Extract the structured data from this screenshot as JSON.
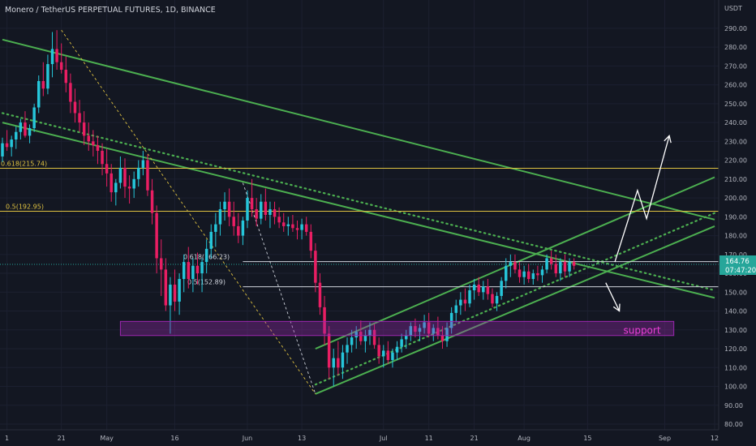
{
  "header": {
    "symbol_line": "Monero / TetherUS PERPETUAL FUTURES, 1D, BINANCE"
  },
  "colors": {
    "background": "#131722",
    "up": "#26c6da",
    "down": "#e91e63",
    "trendline": "#4caf50",
    "fib_level": "#e0c341",
    "white_level": "#cfd3dc",
    "support_zone": "#9c27b0",
    "support_text": "#ea3fd6",
    "arrow": "#ffffff",
    "price_label_bg": "#26a69a"
  },
  "chart_data": {
    "type": "candlestick",
    "title": "Monero / TetherUS PERPETUAL FUTURES, 1D, BINANCE",
    "ylabel": "USDT",
    "ylim": [
      77,
      305
    ],
    "y_ticks": [
      290,
      280,
      270,
      260,
      250,
      240,
      230,
      220,
      210,
      200,
      190,
      180,
      170,
      160,
      150,
      140,
      130,
      120,
      110,
      100,
      90,
      80
    ],
    "x_range": [
      "2022-04-08",
      "2022-09-12"
    ],
    "x_ticks": [
      {
        "label": "1",
        "date": "2022-04-09"
      },
      {
        "label": "21",
        "date": "2022-04-21"
      },
      {
        "label": "May",
        "date": "2022-05-01"
      },
      {
        "label": "16",
        "date": "2022-05-16"
      },
      {
        "label": "Jun",
        "date": "2022-06-01"
      },
      {
        "label": "13",
        "date": "2022-06-13"
      },
      {
        "label": "Jul",
        "date": "2022-07-01"
      },
      {
        "label": "11",
        "date": "2022-07-11"
      },
      {
        "label": "21",
        "date": "2022-07-21"
      },
      {
        "label": "Aug",
        "date": "2022-08-01"
      },
      {
        "label": "15",
        "date": "2022-08-15"
      },
      {
        "label": "Sep",
        "date": "2022-09-01"
      },
      {
        "label": "12",
        "date": "2022-09-12"
      }
    ],
    "candles_start": "2022-04-08",
    "candles": [
      [
        222,
        232,
        219,
        229
      ],
      [
        229,
        236,
        225,
        227
      ],
      [
        227,
        233,
        222,
        231
      ],
      [
        231,
        238,
        226,
        235
      ],
      [
        235,
        242,
        231,
        240
      ],
      [
        240,
        246,
        232,
        233
      ],
      [
        233,
        239,
        229,
        237
      ],
      [
        237,
        250,
        235,
        248
      ],
      [
        248,
        265,
        245,
        262
      ],
      [
        262,
        272,
        254,
        258
      ],
      [
        258,
        276,
        255,
        271
      ],
      [
        271,
        288,
        264,
        279
      ],
      [
        279,
        289,
        268,
        272
      ],
      [
        272,
        282,
        266,
        268
      ],
      [
        268,
        275,
        256,
        261
      ],
      [
        261,
        266,
        245,
        251
      ],
      [
        251,
        258,
        240,
        245
      ],
      [
        245,
        252,
        235,
        240
      ],
      [
        240,
        246,
        228,
        233
      ],
      [
        233,
        240,
        225,
        230
      ],
      [
        230,
        236,
        222,
        228
      ],
      [
        228,
        233,
        218,
        225
      ],
      [
        225,
        229,
        212,
        218
      ],
      [
        218,
        226,
        206,
        213
      ],
      [
        213,
        218,
        198,
        203
      ],
      [
        203,
        210,
        196,
        208
      ],
      [
        208,
        222,
        205,
        216
      ],
      [
        216,
        221,
        200,
        206
      ],
      [
        206,
        212,
        197,
        205
      ],
      [
        205,
        214,
        200,
        210
      ],
      [
        210,
        220,
        206,
        216
      ],
      [
        216,
        225,
        212,
        220
      ],
      [
        220,
        223,
        201,
        204
      ],
      [
        204,
        210,
        186,
        192
      ],
      [
        192,
        196,
        160,
        168
      ],
      [
        168,
        178,
        148,
        162
      ],
      [
        162,
        168,
        140,
        143
      ],
      [
        143,
        158,
        128,
        154
      ],
      [
        154,
        162,
        140,
        145
      ],
      [
        145,
        160,
        138,
        157
      ],
      [
        157,
        170,
        150,
        166
      ],
      [
        166,
        174,
        152,
        157
      ],
      [
        157,
        168,
        150,
        164
      ],
      [
        164,
        171,
        154,
        160
      ],
      [
        160,
        168,
        150,
        166
      ],
      [
        166,
        178,
        160,
        173
      ],
      [
        173,
        186,
        168,
        182
      ],
      [
        182,
        192,
        174,
        186
      ],
      [
        186,
        198,
        180,
        194
      ],
      [
        194,
        203,
        188,
        198
      ],
      [
        198,
        205,
        185,
        190
      ],
      [
        190,
        198,
        180,
        185
      ],
      [
        185,
        192,
        176,
        180
      ],
      [
        180,
        190,
        175,
        188
      ],
      [
        188,
        204,
        184,
        200
      ],
      [
        200,
        210,
        190,
        194
      ],
      [
        194,
        200,
        185,
        189
      ],
      [
        189,
        202,
        186,
        198
      ],
      [
        198,
        205,
        188,
        191
      ],
      [
        191,
        198,
        184,
        194
      ],
      [
        194,
        198,
        186,
        190
      ],
      [
        190,
        195,
        184,
        187
      ],
      [
        187,
        192,
        182,
        185
      ],
      [
        185,
        190,
        180,
        186
      ],
      [
        186,
        191,
        182,
        184
      ],
      [
        184,
        188,
        178,
        183
      ],
      [
        183,
        189,
        178,
        186
      ],
      [
        186,
        190,
        180,
        182
      ],
      [
        182,
        186,
        168,
        172
      ],
      [
        172,
        176,
        150,
        155
      ],
      [
        155,
        160,
        138,
        142
      ],
      [
        142,
        148,
        122,
        128
      ],
      [
        128,
        132,
        104,
        110
      ],
      [
        110,
        120,
        100,
        115
      ],
      [
        115,
        124,
        106,
        110
      ],
      [
        110,
        122,
        104,
        118
      ],
      [
        118,
        126,
        112,
        122
      ],
      [
        122,
        130,
        118,
        126
      ],
      [
        126,
        132,
        120,
        129
      ],
      [
        129,
        135,
        122,
        124
      ],
      [
        124,
        130,
        118,
        127
      ],
      [
        127,
        134,
        122,
        130
      ],
      [
        130,
        133,
        120,
        122
      ],
      [
        122,
        126,
        112,
        116
      ],
      [
        116,
        122,
        110,
        119
      ],
      [
        119,
        124,
        112,
        114
      ],
      [
        114,
        120,
        110,
        118
      ],
      [
        118,
        124,
        114,
        121
      ],
      [
        121,
        128,
        118,
        125
      ],
      [
        125,
        130,
        120,
        127
      ],
      [
        127,
        134,
        124,
        132
      ],
      [
        132,
        136,
        126,
        129
      ],
      [
        129,
        133,
        124,
        131
      ],
      [
        131,
        138,
        128,
        134
      ],
      [
        134,
        139,
        126,
        128
      ],
      [
        128,
        133,
        124,
        131
      ],
      [
        131,
        137,
        125,
        127
      ],
      [
        127,
        132,
        120,
        124
      ],
      [
        124,
        134,
        121,
        131
      ],
      [
        131,
        142,
        128,
        139
      ],
      [
        139,
        146,
        134,
        143
      ],
      [
        143,
        150,
        138,
        146
      ],
      [
        146,
        152,
        140,
        144
      ],
      [
        144,
        154,
        142,
        151
      ],
      [
        151,
        157,
        146,
        154
      ],
      [
        154,
        158,
        148,
        150
      ],
      [
        150,
        156,
        146,
        153
      ],
      [
        153,
        157,
        146,
        149
      ],
      [
        149,
        152,
        142,
        144
      ],
      [
        144,
        150,
        140,
        148
      ],
      [
        148,
        158,
        146,
        156
      ],
      [
        156,
        168,
        152,
        164
      ],
      [
        164,
        170,
        158,
        166
      ],
      [
        166,
        170,
        160,
        162
      ],
      [
        162,
        166,
        155,
        158
      ],
      [
        158,
        164,
        154,
        161
      ],
      [
        161,
        165,
        155,
        157
      ],
      [
        157,
        162,
        154,
        160
      ],
      [
        160,
        164,
        156,
        159
      ],
      [
        159,
        164,
        155,
        162
      ],
      [
        162,
        170,
        160,
        168
      ],
      [
        168,
        172,
        162,
        165
      ],
      [
        165,
        170,
        158,
        160
      ],
      [
        160,
        168,
        156,
        166
      ],
      [
        166,
        170,
        158,
        161
      ],
      [
        161,
        168,
        158,
        166
      ],
      [
        166,
        168,
        162,
        164
      ]
    ],
    "last_price": "164.76",
    "countdown": "07:47:20",
    "levels": [
      {
        "label": "0.618(215.74)",
        "price": 215.74,
        "kind": "fib"
      },
      {
        "label": "0.5(192.95)",
        "price": 192.95,
        "kind": "fib"
      },
      {
        "label": "0.618(166.23)",
        "price": 166.23,
        "kind": "white"
      },
      {
        "label": "0.5(152.89)",
        "price": 152.89,
        "kind": "white"
      }
    ],
    "support_zone": {
      "label": "support",
      "from": "2022-05-04",
      "to": "2022-09-03",
      "low": 127,
      "high": 134.5
    },
    "trendlines": [
      {
        "style": "solid",
        "from": [
          "2022-04-08",
          284
        ],
        "to": [
          "2022-09-12",
          188.5
        ]
      },
      {
        "style": "solid",
        "from": [
          "2022-04-08",
          240
        ],
        "to": [
          "2022-09-12",
          147
        ]
      },
      {
        "style": "dotted",
        "from": [
          "2022-04-08",
          245
        ],
        "to": [
          "2022-09-12",
          151
        ]
      },
      {
        "style": "solid",
        "from": [
          "2022-06-16",
          120
        ],
        "to": [
          "2022-09-12",
          211
        ]
      },
      {
        "style": "solid",
        "from": [
          "2022-06-16",
          96
        ],
        "to": [
          "2022-09-12",
          185
        ]
      },
      {
        "style": "dotted",
        "from": [
          "2022-06-16",
          101
        ],
        "to": [
          "2022-09-12",
          192
        ]
      }
    ],
    "guides": [
      {
        "from": [
          "2022-04-21",
          289
        ],
        "to": [
          "2022-06-16",
          96
        ]
      },
      {
        "from": [
          "2022-05-31",
          208
        ],
        "to": [
          "2022-06-16",
          96
        ]
      }
    ],
    "projection_up": [
      [
        "2022-08-21",
        166
      ],
      [
        "2022-08-26",
        204
      ],
      [
        "2022-08-28",
        189
      ],
      [
        "2022-09-02",
        233
      ]
    ],
    "projection_down": [
      [
        "2022-08-19",
        155
      ],
      [
        "2022-08-22",
        140
      ]
    ]
  }
}
